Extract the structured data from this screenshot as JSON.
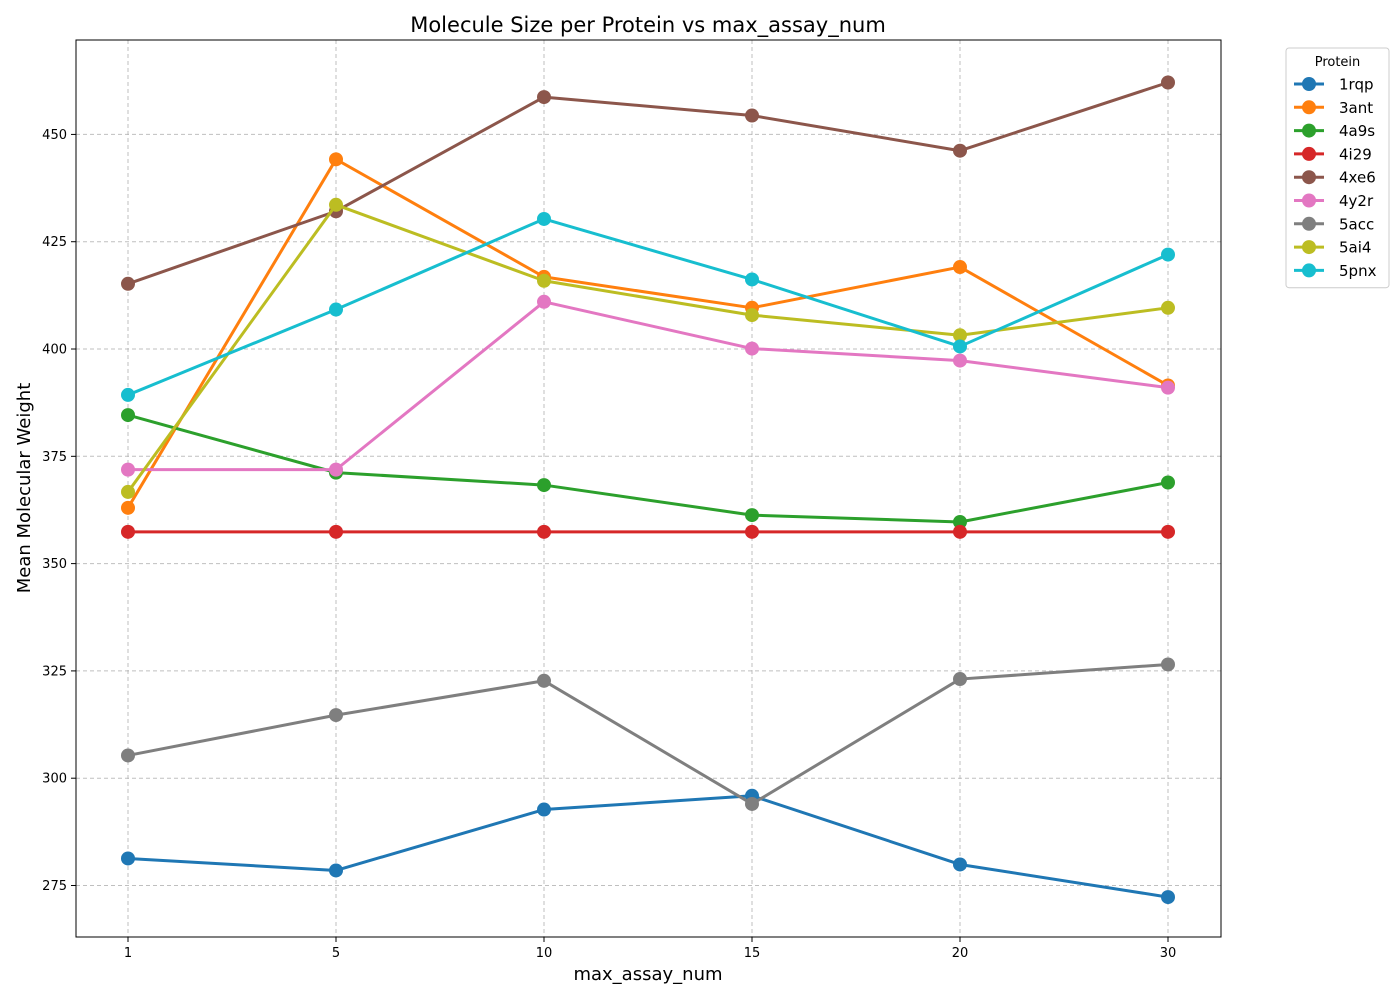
{
  "chart_data": {
    "type": "line",
    "title": "Molecule Size per Protein vs max_assay_num",
    "xlabel": "max_assay_num",
    "ylabel": "Mean Molecular Weight",
    "x": [
      "1",
      "5",
      "10",
      "15",
      "20",
      "30"
    ],
    "yticks": [
      275,
      300,
      325,
      350,
      375,
      400,
      425,
      450
    ],
    "ylim": [
      263,
      472
    ],
    "grid": true,
    "legend": {
      "title": "Protein",
      "placement": "upper-right-outside"
    },
    "series": [
      {
        "name": "1rqp",
        "color": "#1f77b4",
        "values": [
          281.3,
          278.5,
          292.7,
          295.9,
          279.9,
          272.3
        ]
      },
      {
        "name": "3ant",
        "color": "#ff7f0e",
        "values": [
          363.0,
          444.2,
          416.8,
          409.6,
          419.1,
          391.5
        ]
      },
      {
        "name": "4a9s",
        "color": "#2ca02c",
        "values": [
          384.6,
          371.2,
          368.3,
          361.3,
          359.7,
          368.9
        ]
      },
      {
        "name": "4i29",
        "color": "#d62728",
        "values": [
          357.4,
          357.4,
          357.4,
          357.4,
          357.4,
          357.4
        ]
      },
      {
        "name": "4xe6",
        "color": "#8c564b",
        "values": [
          415.2,
          432.1,
          458.7,
          454.4,
          446.2,
          462.1
        ]
      },
      {
        "name": "4y2r",
        "color": "#e377c2",
        "values": [
          371.9,
          371.9,
          411.0,
          400.1,
          397.3,
          391.0
        ]
      },
      {
        "name": "5acc",
        "color": "#7f7f7f",
        "values": [
          305.3,
          314.7,
          322.7,
          294.0,
          323.1,
          326.5
        ]
      },
      {
        "name": "5ai4",
        "color": "#bcbd22",
        "values": [
          366.7,
          433.6,
          415.9,
          407.9,
          403.2,
          409.6
        ]
      },
      {
        "name": "5pnx",
        "color": "#17becf",
        "values": [
          389.3,
          409.2,
          430.3,
          416.2,
          400.6,
          422.0
        ]
      }
    ]
  }
}
